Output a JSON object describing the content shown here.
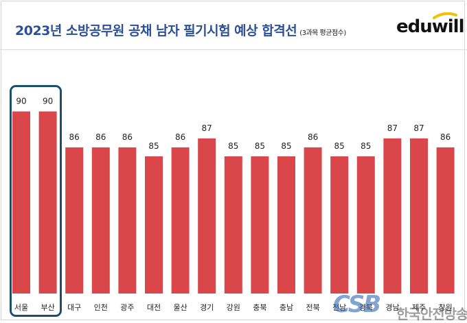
{
  "header": {
    "title": "2023년 소방공무원 공채 남자 필기시험 예상 합격선",
    "subtitle": "(3과목 평균점수)",
    "logo": "eduwill"
  },
  "watermark": {
    "logo": "CSB",
    "text": "한국안전방송"
  },
  "colors": {
    "title": "#2c4f96",
    "bar": "#d9474a",
    "highlight_border": "#1d4e6e"
  },
  "chart_data": {
    "type": "bar",
    "title": "2023년 소방공무원 공채 남자 필기시험 예상 합격선",
    "subtitle": "(3과목 평균점수)",
    "categories": [
      "서울",
      "부산",
      "대구",
      "인천",
      "광주",
      "대전",
      "울산",
      "경기",
      "강원",
      "충북",
      "충남",
      "전북",
      "전남",
      "경북",
      "경남",
      "제주",
      "창원"
    ],
    "values": [
      90,
      90,
      86,
      86,
      86,
      85,
      86,
      87,
      85,
      85,
      85,
      86,
      85,
      85,
      87,
      87,
      86
    ],
    "highlighted": [
      "서울",
      "부산"
    ],
    "xlabel": "",
    "ylabel": "",
    "grid": false,
    "legend": "none"
  }
}
